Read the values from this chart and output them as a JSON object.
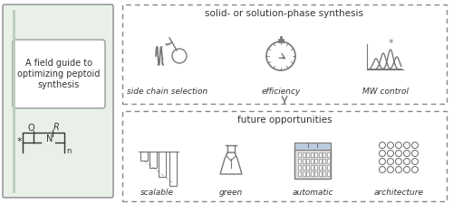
{
  "bg_color": "#f0f4f0",
  "border_color": "#aaaaaa",
  "text_color": "#333333",
  "book_title": "A field guide to\noptimizing peptoid\nsynthesis",
  "book_bg": "#e8f0e8",
  "top_box_title": "solid- or solution-phase synthesis",
  "top_icons": [
    "side chain selection",
    "efficiency",
    "MW control"
  ],
  "bottom_box_title": "future opportunities",
  "bottom_icons": [
    "scalable",
    "green",
    "automatic",
    "architecture"
  ],
  "arrow_color": "#555555",
  "dashed_color": "#888888",
  "icon_color": "#777777",
  "title_fontsize": 7.5,
  "label_fontsize": 6.5,
  "book_title_fontsize": 7.0
}
